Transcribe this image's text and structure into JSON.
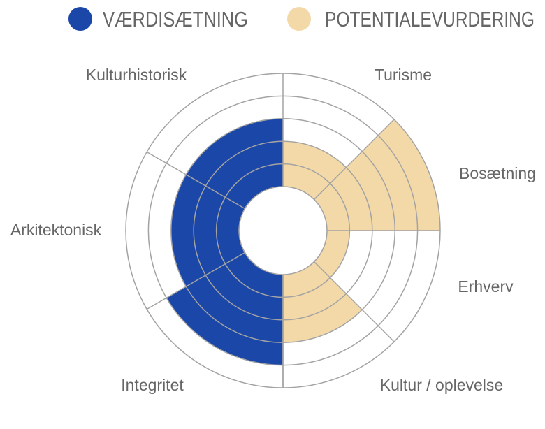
{
  "chart_data": {
    "type": "polar-bar",
    "title": "",
    "scale": {
      "min": 0,
      "max": 5,
      "rings": 5
    },
    "grid": true,
    "legend_placement": "top",
    "series": [
      {
        "name": "VÆRDISÆTNING",
        "color": "#1b47a8",
        "categories": [
          "Kulturhistorisk",
          "Arkitektonisk",
          "Integritet"
        ],
        "values": [
          3,
          3,
          4
        ]
      },
      {
        "name": "POTENTIALEVURDERING",
        "color": "#f4d9a8",
        "categories": [
          "Turisme",
          "Bosætning",
          "Erhverv",
          "Kultur / oplevelse"
        ],
        "values": [
          2,
          5,
          1,
          3
        ]
      }
    ]
  }
}
